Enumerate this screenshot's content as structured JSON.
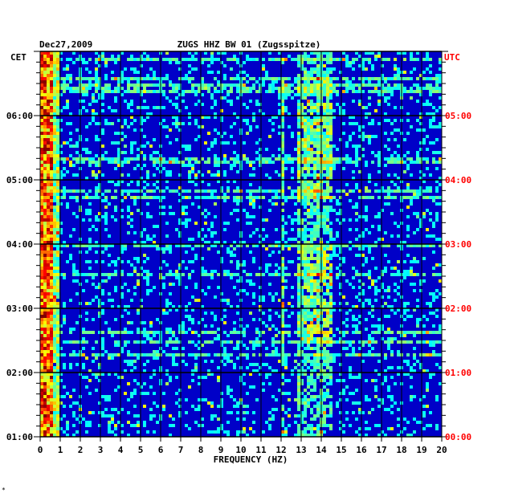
{
  "header": {
    "date": "Dec27,2009",
    "station": "ZUGS HHZ BW 01 (Zugsspitze)"
  },
  "left_axis": {
    "zone": "CET",
    "ticks": [
      "06:00",
      "05:00",
      "04:00",
      "03:00",
      "02:00",
      "01:00"
    ]
  },
  "right_axis": {
    "zone": "UTC",
    "ticks": [
      "05:00",
      "04:00",
      "03:00",
      "02:00",
      "01:00",
      "00:00"
    ]
  },
  "footnote": "*",
  "colors": {
    "background": "#0000c8",
    "grid": "#000000",
    "utc_text": "#ff0000",
    "text": "#000000"
  },
  "chart_data": {
    "type": "heatmap",
    "title": "ZUGS HHZ BW 01 (Zugsspitze)",
    "date": "Dec27,2009",
    "xlabel": "FREQUENCY (HZ)",
    "x_ticks": [
      0,
      1,
      2,
      3,
      4,
      5,
      6,
      7,
      8,
      9,
      10,
      11,
      12,
      13,
      14,
      15,
      16,
      17,
      18,
      19,
      20
    ],
    "xlim": [
      0,
      20
    ],
    "y_left_label": "CET",
    "y_right_label": "UTC",
    "y_left_ticks": [
      "06:00",
      "05:00",
      "04:00",
      "03:00",
      "02:00",
      "01:00"
    ],
    "y_right_ticks": [
      "05:00",
      "04:00",
      "03:00",
      "02:00",
      "01:00",
      "00:00"
    ],
    "colormap": "jet",
    "energy_bands_hz": [
      [
        0,
        1
      ],
      [
        12,
        12.2
      ],
      [
        12.8,
        14.6
      ]
    ]
  }
}
